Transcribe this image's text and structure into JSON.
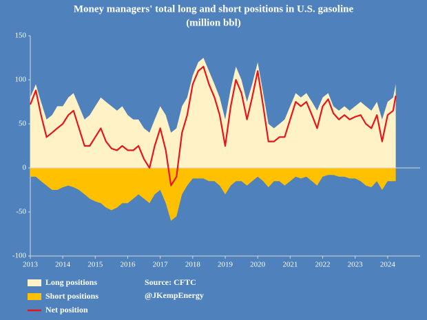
{
  "chart_data": {
    "type": "area",
    "title": "Money managers' total long and short positions in U.S. gasoline",
    "subtitle": "(million bbl)",
    "x": [
      2013,
      2013.17,
      2013.33,
      2013.5,
      2013.67,
      2013.83,
      2014,
      2014.17,
      2014.33,
      2014.5,
      2014.67,
      2014.83,
      2015,
      2015.17,
      2015.33,
      2015.5,
      2015.67,
      2015.83,
      2016,
      2016.17,
      2016.33,
      2016.5,
      2016.67,
      2016.83,
      2017,
      2017.17,
      2017.33,
      2017.5,
      2017.67,
      2017.83,
      2018,
      2018.17,
      2018.33,
      2018.5,
      2018.67,
      2018.83,
      2019,
      2019.17,
      2019.33,
      2019.5,
      2019.67,
      2019.83,
      2020,
      2020.17,
      2020.33,
      2020.5,
      2020.67,
      2020.83,
      2021,
      2021.17,
      2021.33,
      2021.5,
      2021.67,
      2021.83,
      2022,
      2022.17,
      2022.33,
      2022.5,
      2022.67,
      2022.83,
      2023,
      2023.17,
      2023.33,
      2023.5,
      2023.67,
      2023.83,
      2024,
      2024.17,
      2024.25
    ],
    "series": [
      {
        "name": "Long positions",
        "type": "area",
        "color": "#fff2c6",
        "values": [
          80,
          95,
          75,
          55,
          60,
          70,
          70,
          80,
          85,
          70,
          55,
          60,
          70,
          80,
          75,
          70,
          65,
          70,
          60,
          55,
          55,
          45,
          40,
          55,
          70,
          60,
          40,
          45,
          70,
          80,
          105,
          120,
          125,
          110,
          95,
          80,
          55,
          90,
          115,
          100,
          75,
          95,
          120,
          85,
          50,
          45,
          50,
          55,
          70,
          85,
          80,
          85,
          75,
          65,
          80,
          85,
          70,
          65,
          70,
          65,
          70,
          75,
          70,
          65,
          75,
          55,
          75,
          80,
          95
        ]
      },
      {
        "name": "Short positions",
        "type": "area",
        "color": "#ffc000",
        "values": [
          -10,
          -10,
          -15,
          -20,
          -25,
          -25,
          -22,
          -20,
          -22,
          -25,
          -30,
          -35,
          -38,
          -40,
          -45,
          -48,
          -45,
          -40,
          -40,
          -35,
          -30,
          -35,
          -40,
          -30,
          -25,
          -40,
          -60,
          -55,
          -30,
          -20,
          -12,
          -12,
          -12,
          -15,
          -15,
          -20,
          -30,
          -20,
          -15,
          -15,
          -20,
          -15,
          -10,
          -15,
          -22,
          -15,
          -15,
          -20,
          -15,
          -10,
          -12,
          -10,
          -15,
          -20,
          -10,
          -8,
          -8,
          -10,
          -10,
          -12,
          -12,
          -15,
          -20,
          -22,
          -15,
          -25,
          -15,
          -15,
          -15
        ]
      },
      {
        "name": "Net position",
        "type": "line",
        "color": "#e8141c",
        "values": [
          72,
          88,
          60,
          35,
          40,
          45,
          50,
          60,
          65,
          45,
          25,
          25,
          35,
          45,
          30,
          22,
          20,
          25,
          20,
          20,
          25,
          10,
          0,
          25,
          45,
          20,
          -20,
          -10,
          40,
          60,
          95,
          110,
          115,
          95,
          80,
          60,
          25,
          70,
          100,
          85,
          55,
          80,
          110,
          70,
          30,
          30,
          35,
          35,
          55,
          75,
          70,
          75,
          60,
          45,
          70,
          78,
          62,
          55,
          60,
          55,
          58,
          60,
          50,
          45,
          60,
          30,
          60,
          65,
          82
        ]
      }
    ],
    "xlim": [
      2013,
      2025
    ],
    "xticks": [
      2013,
      2014,
      2015,
      2016,
      2017,
      2018,
      2019,
      2020,
      2021,
      2022,
      2023,
      2024
    ],
    "ylim": [
      -100,
      150
    ],
    "yticks": [
      -100,
      -50,
      0,
      50,
      100,
      150
    ],
    "grid": false,
    "legend": "bottom-left",
    "annotations": [
      "Source: CFTC",
      "@JKempEnergy"
    ]
  }
}
